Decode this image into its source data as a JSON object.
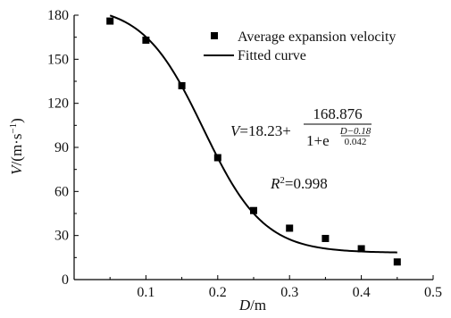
{
  "chart_data": {
    "type": "scatter",
    "xlabel_var": "D",
    "xlabel_unit": "/m",
    "ylabel_var": "V",
    "ylabel_unit": "/(m·s",
    "ylabel_exp": "−1",
    "ylabel_close": ")",
    "xlim": [
      0,
      0.5
    ],
    "ylim": [
      0,
      180
    ],
    "x_ticks": [
      0.1,
      0.2,
      0.3,
      0.4,
      0.5
    ],
    "x_tick_labels": [
      "0.1",
      "0.2",
      "0.3",
      "0.4",
      "0.5"
    ],
    "y_ticks": [
      0,
      30,
      60,
      90,
      120,
      150,
      180
    ],
    "y_tick_labels": [
      "0",
      "30",
      "60",
      "90",
      "120",
      "150",
      "180"
    ],
    "grid": false,
    "legend_position": "top-right",
    "series": [
      {
        "name": "Average expansion velocity",
        "kind": "scatter",
        "marker": "square",
        "x": [
          0.05,
          0.1,
          0.15,
          0.2,
          0.25,
          0.3,
          0.35,
          0.4,
          0.45
        ],
        "y": [
          176,
          163,
          132,
          83,
          47,
          35,
          28,
          21,
          12
        ]
      },
      {
        "name": "Fitted curve",
        "kind": "line",
        "model": {
          "A2": 18.23,
          "A": 168.876,
          "x0": 0.18,
          "dx": 0.042
        },
        "x_range": [
          0.05,
          0.45
        ]
      }
    ],
    "annotations": {
      "equation": {
        "lhs": "V",
        "base": "=18.23+",
        "numerator": "168.876",
        "denom_base": "1+e",
        "exp_num": "D−0.18",
        "exp_den": "0.042"
      },
      "r2": {
        "label": "R",
        "exp": "2",
        "value": "=0.998"
      }
    }
  }
}
